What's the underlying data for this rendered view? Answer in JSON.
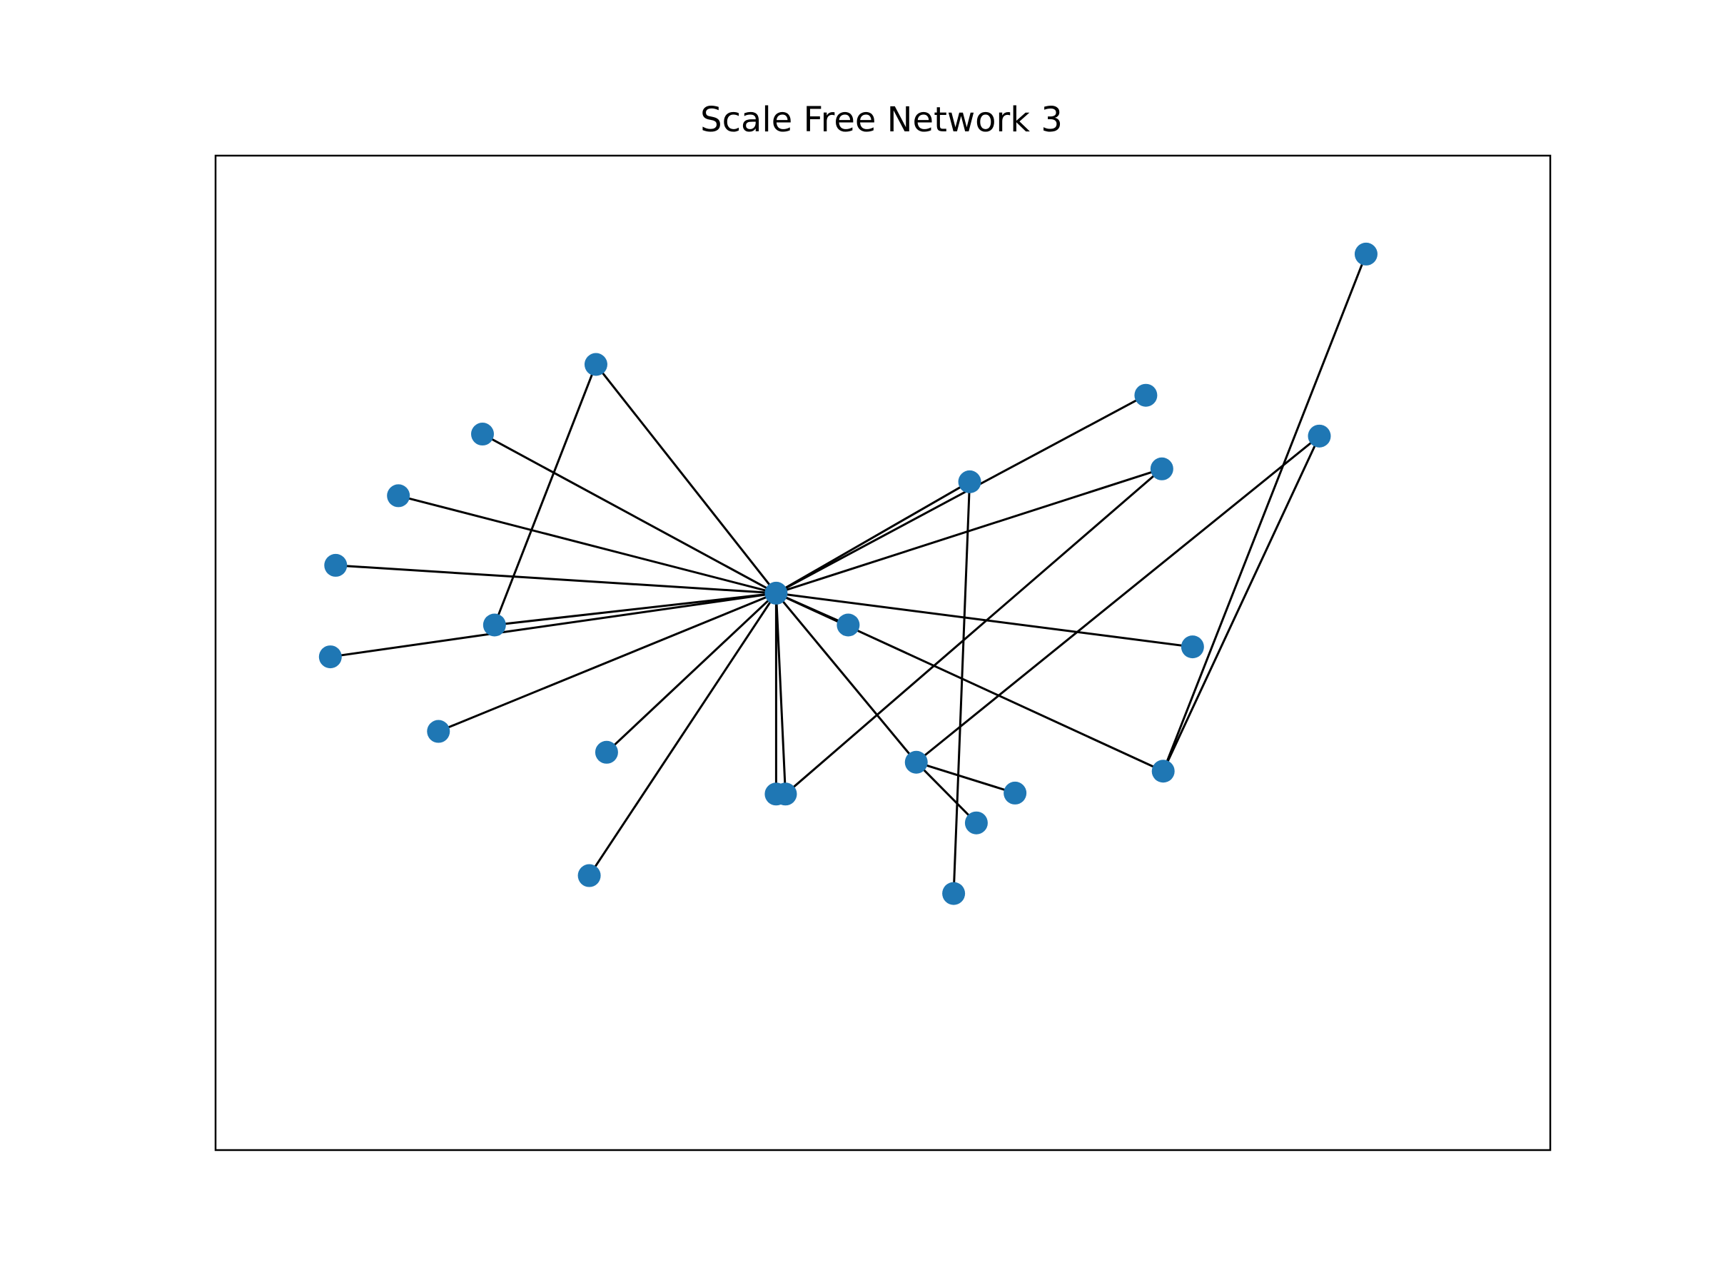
{
  "title": "Scale Free Network 3",
  "node_color": "#1f77b4",
  "edge_color": "#000000",
  "chart_data": {
    "type": "network",
    "title": "Scale Free Network 3",
    "nodes": [
      {
        "id": "hub",
        "x": 0.42,
        "y": 0.56
      },
      {
        "id": "n1",
        "x": 0.285,
        "y": 0.79
      },
      {
        "id": "n2",
        "x": 0.2,
        "y": 0.72
      },
      {
        "id": "n3",
        "x": 0.137,
        "y": 0.658
      },
      {
        "id": "n4",
        "x": 0.09,
        "y": 0.588
      },
      {
        "id": "n5",
        "x": 0.209,
        "y": 0.528
      },
      {
        "id": "n6",
        "x": 0.086,
        "y": 0.496
      },
      {
        "id": "n7",
        "x": 0.167,
        "y": 0.421
      },
      {
        "id": "n8",
        "x": 0.293,
        "y": 0.4
      },
      {
        "id": "n9",
        "x": 0.42,
        "y": 0.358
      },
      {
        "id": "n10",
        "x": 0.474,
        "y": 0.528
      },
      {
        "id": "n11",
        "x": 0.565,
        "y": 0.672
      },
      {
        "id": "n12",
        "x": 0.697,
        "y": 0.759
      },
      {
        "id": "n13",
        "x": 0.709,
        "y": 0.685
      },
      {
        "id": "n14",
        "x": 0.732,
        "y": 0.506
      },
      {
        "id": "n15",
        "x": 0.71,
        "y": 0.381
      },
      {
        "id": "n16",
        "x": 0.862,
        "y": 0.901
      },
      {
        "id": "n17",
        "x": 0.827,
        "y": 0.718
      },
      {
        "id": "n18",
        "x": 0.525,
        "y": 0.39
      },
      {
        "id": "n19",
        "x": 0.57,
        "y": 0.329
      },
      {
        "id": "n20",
        "x": 0.599,
        "y": 0.359
      },
      {
        "id": "n21",
        "x": 0.28,
        "y": 0.276
      },
      {
        "id": "n22",
        "x": 0.427,
        "y": 0.358
      },
      {
        "id": "n23",
        "x": 0.553,
        "y": 0.258
      }
    ],
    "edges": [
      [
        "hub",
        "n1"
      ],
      [
        "n1",
        "n5"
      ],
      [
        "hub",
        "n2"
      ],
      [
        "hub",
        "n3"
      ],
      [
        "hub",
        "n4"
      ],
      [
        "hub",
        "n5"
      ],
      [
        "hub",
        "n6"
      ],
      [
        "hub",
        "n7"
      ],
      [
        "hub",
        "n8"
      ],
      [
        "hub",
        "n9"
      ],
      [
        "hub",
        "n10"
      ],
      [
        "hub",
        "n11"
      ],
      [
        "n11",
        "n23"
      ],
      [
        "hub",
        "n12"
      ],
      [
        "hub",
        "n13"
      ],
      [
        "hub",
        "n14"
      ],
      [
        "hub",
        "n15"
      ],
      [
        "n15",
        "n16"
      ],
      [
        "n15",
        "n17"
      ],
      [
        "hub",
        "n18"
      ],
      [
        "n18",
        "n17"
      ],
      [
        "n18",
        "n19"
      ],
      [
        "n18",
        "n20"
      ],
      [
        "hub",
        "n21"
      ],
      [
        "hub",
        "n22"
      ],
      [
        "n13",
        "n22"
      ]
    ]
  }
}
